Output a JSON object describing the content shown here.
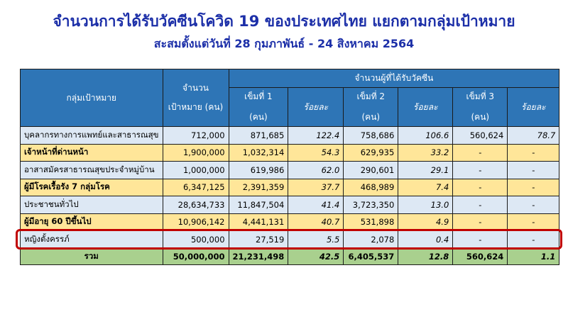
{
  "title": "จำนวนการได้รับวัคซีนโควิด 19 ของประเทศไทย แยกตามกลุ่มเป้าหมาย",
  "subtitle": "สะสมตั้งแต่วันที่ 28 กุมภาพันธ์ - 24 สิงหาคม 2564",
  "colors": {
    "header": "#2e75b6",
    "row_blue": "#dde8f4",
    "row_yellow": "#ffe699",
    "total": "#a9d08e",
    "highlight": "#c00000",
    "title": "#1c2fa8"
  },
  "headers": {
    "group": "กลุ่มเป้าหมาย",
    "target_1": "จำนวน",
    "target_2": "เป้าหมาย (คน)",
    "vaccinated": "จำนวนผู้ที่ได้รับวัคซีน",
    "dose1_1": "เข็มที่ 1",
    "dose1_2": "(คน)",
    "dose2_1": "เข็มที่ 2",
    "dose2_2": "(คน)",
    "dose3_1": "เข็มที่ 3",
    "dose3_2": "(คน)",
    "pct": "ร้อยละ"
  },
  "rows": [
    {
      "group": "บุคลากรทางการแพทย์และสาธารณสุข",
      "target": "712,000",
      "d1": "871,685",
      "p1": "122.4",
      "d2": "758,686",
      "p2": "106.6",
      "d3": "560,624",
      "p3": "78.7"
    },
    {
      "group": "เจ้าหน้าที่ด่านหน้า",
      "target": "1,900,000",
      "d1": "1,032,314",
      "p1": "54.3",
      "d2": "629,935",
      "p2": "33.2",
      "d3": "-",
      "p3": "-"
    },
    {
      "group": "อาสาสมัครสาธารณสุขประจำหมู่บ้าน",
      "target": "1,000,000",
      "d1": "619,986",
      "p1": "62.0",
      "d2": "290,601",
      "p2": "29.1",
      "d3": "-",
      "p3": "-"
    },
    {
      "group": "ผู้มีโรคเรื้อรัง 7 กลุ่มโรค",
      "target": "6,347,125",
      "d1": "2,391,359",
      "p1": "37.7",
      "d2": "468,989",
      "p2": "7.4",
      "d3": "-",
      "p3": "-"
    },
    {
      "group": "ประชาชนทั่วไป",
      "target": "28,634,733",
      "d1": "11,847,504",
      "p1": "41.4",
      "d2": "3,723,350",
      "p2": "13.0",
      "d3": "-",
      "p3": "-"
    },
    {
      "group": "ผู้มีอายุ 60 ปีขึ้นไป",
      "target": "10,906,142",
      "d1": "4,441,131",
      "p1": "40.7",
      "d2": "531,898",
      "p2": "4.9",
      "d3": "-",
      "p3": "-"
    },
    {
      "group": "หญิงตั้งครรภ์",
      "target": "500,000",
      "d1": "27,519",
      "p1": "5.5",
      "d2": "2,078",
      "p2": "0.4",
      "d3": "-",
      "p3": "-"
    }
  ],
  "total": {
    "group": "รวม",
    "target": "50,000,000",
    "d1": "21,231,498",
    "p1": "42.5",
    "d2": "6,405,537",
    "p2": "12.8",
    "d3": "560,624",
    "p3": "1.1"
  }
}
